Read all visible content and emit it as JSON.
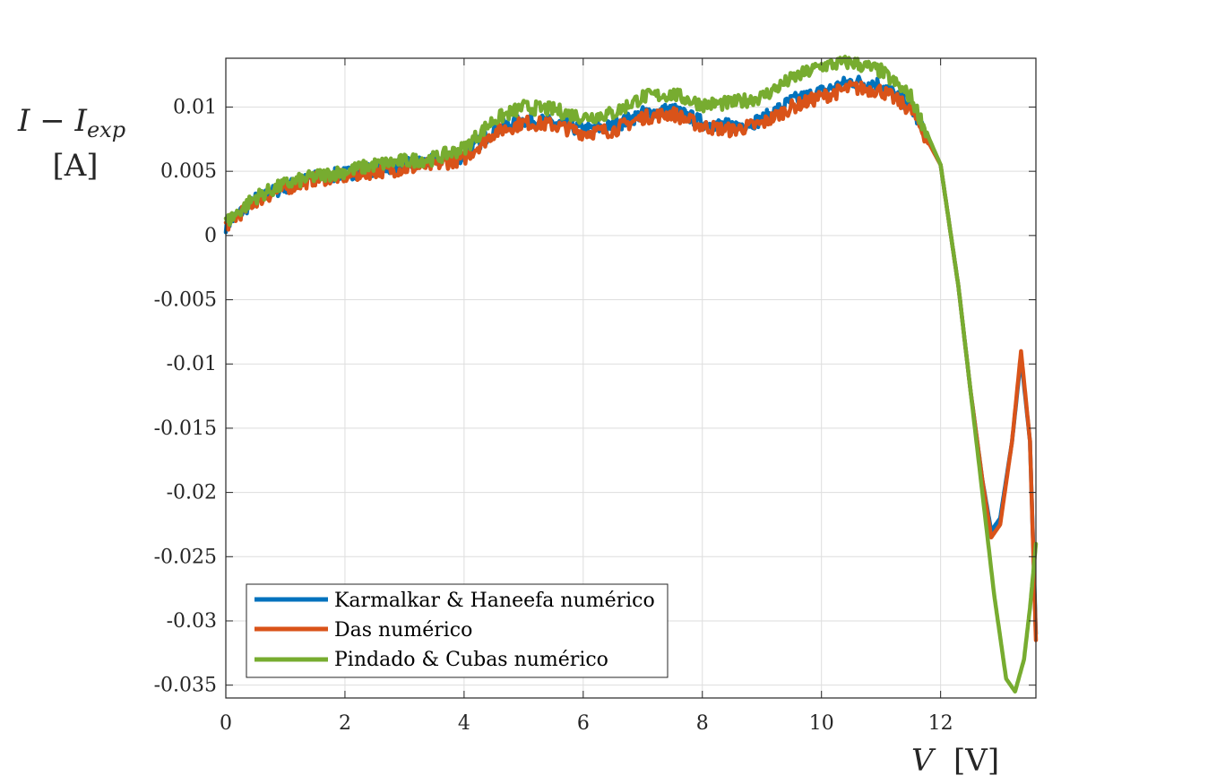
{
  "chart_data": {
    "type": "line",
    "xlabel": "V",
    "xlabel_unit": "[V]",
    "ylabel": "I − I",
    "ylabel_sub": "exp",
    "ylabel_unit": "[A]",
    "xlim": [
      0,
      13.6
    ],
    "ylim": [
      -0.036,
      0.0138
    ],
    "xticks": [
      0,
      2,
      4,
      6,
      8,
      10,
      12
    ],
    "xtick_labels": [
      "0",
      "2",
      "4",
      "6",
      "8",
      "10",
      "12"
    ],
    "yticks": [
      0.01,
      0.005,
      0,
      -0.005,
      -0.01,
      -0.015,
      -0.02,
      -0.025,
      -0.03,
      -0.035
    ],
    "ytick_labels": [
      "0.01",
      "0.005",
      "0",
      "-0.005",
      "-0.01",
      "-0.015",
      "-0.02",
      "-0.025",
      "-0.03",
      "-0.035"
    ],
    "grid": true,
    "legend_position": "bottom-left",
    "series": [
      {
        "name": "Karmalkar & Haneefa numérico",
        "color": "#0072BD",
        "x": [
          0,
          0.5,
          1.0,
          1.5,
          2.0,
          2.5,
          3.0,
          3.5,
          4.0,
          4.5,
          5.0,
          5.5,
          6.0,
          6.5,
          7.0,
          7.5,
          8.0,
          8.5,
          9.0,
          9.5,
          10.0,
          10.5,
          11.0,
          11.5,
          12.0,
          12.3,
          12.5,
          12.7,
          12.85,
          13.0,
          13.2,
          13.35,
          13.5,
          13.6
        ],
        "y": [
          0.0008,
          0.0028,
          0.0038,
          0.0045,
          0.0048,
          0.0052,
          0.0055,
          0.0058,
          0.0062,
          0.0082,
          0.009,
          0.0088,
          0.0082,
          0.0085,
          0.0095,
          0.0098,
          0.0088,
          0.0085,
          0.009,
          0.0105,
          0.0112,
          0.012,
          0.0118,
          0.01,
          0.0055,
          -0.004,
          -0.012,
          -0.019,
          -0.023,
          -0.022,
          -0.016,
          -0.0095,
          -0.016,
          -0.031
        ]
      },
      {
        "name": "Das numérico",
        "color": "#D95319",
        "x": [
          0,
          0.5,
          1.0,
          1.5,
          2.0,
          2.5,
          3.0,
          3.5,
          4.0,
          4.5,
          5.0,
          5.5,
          6.0,
          6.5,
          7.0,
          7.5,
          8.0,
          8.5,
          9.0,
          9.5,
          10.0,
          10.5,
          11.0,
          11.5,
          12.0,
          12.3,
          12.5,
          12.7,
          12.85,
          13.0,
          13.2,
          13.35,
          13.5,
          13.6
        ],
        "y": [
          0.0008,
          0.0027,
          0.0037,
          0.0044,
          0.0046,
          0.005,
          0.0052,
          0.0055,
          0.006,
          0.008,
          0.0088,
          0.0086,
          0.008,
          0.0082,
          0.0092,
          0.0095,
          0.0085,
          0.0082,
          0.0087,
          0.01,
          0.0108,
          0.0115,
          0.0113,
          0.0098,
          0.0055,
          -0.004,
          -0.012,
          -0.019,
          -0.0235,
          -0.0225,
          -0.016,
          -0.009,
          -0.016,
          -0.0315
        ]
      },
      {
        "name": "Pindado & Cubas numérico",
        "color": "#77AC30",
        "x": [
          0,
          0.5,
          1.0,
          1.5,
          2.0,
          2.5,
          3.0,
          3.5,
          4.0,
          4.5,
          5.0,
          5.5,
          6.0,
          6.5,
          7.0,
          7.5,
          8.0,
          8.5,
          9.0,
          9.5,
          10.0,
          10.5,
          11.0,
          11.5,
          12.0,
          12.3,
          12.6,
          12.9,
          13.1,
          13.25,
          13.4,
          13.5,
          13.6
        ],
        "y": [
          0.001,
          0.003,
          0.004,
          0.0046,
          0.005,
          0.0055,
          0.0058,
          0.006,
          0.0068,
          0.009,
          0.01,
          0.0098,
          0.0092,
          0.0095,
          0.0108,
          0.011,
          0.0102,
          0.0103,
          0.0108,
          0.0122,
          0.0132,
          0.0135,
          0.0128,
          0.0108,
          0.0055,
          -0.004,
          -0.016,
          -0.028,
          -0.0345,
          -0.0355,
          -0.033,
          -0.029,
          -0.024
        ]
      }
    ]
  }
}
